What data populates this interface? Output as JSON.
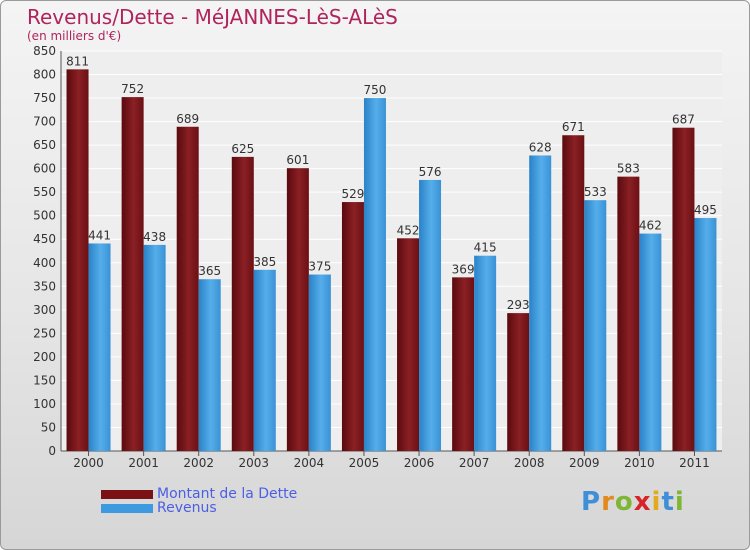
{
  "header": {
    "title": "Revenus/Dette - MéJANNES-LèS-ALèS",
    "subtitle": "(en milliers d'€)"
  },
  "legend": {
    "items": [
      {
        "label": "Montant de la Dette",
        "color": "#7a1216"
      },
      {
        "label": "Revenus",
        "color": "#3d9ae0"
      }
    ]
  },
  "logo": {
    "text": "Proxiti"
  },
  "colors": {
    "title": "#b0245d",
    "debt": "#7a1216",
    "revenue": "#3d9ae0",
    "legend_text": "#4a5fe6"
  },
  "chart_data": {
    "type": "bar",
    "title": "Revenus/Dette - MéJANNES-LèS-ALèS",
    "subtitle": "(en milliers d'€)",
    "categories": [
      "2000",
      "2001",
      "2002",
      "2003",
      "2004",
      "2005",
      "2006",
      "2007",
      "2008",
      "2009",
      "2010",
      "2011"
    ],
    "series": [
      {
        "name": "Montant de la Dette",
        "values": [
          811,
          752,
          689,
          625,
          601,
          529,
          452,
          369,
          293,
          671,
          583,
          687
        ]
      },
      {
        "name": "Revenus",
        "values": [
          441,
          438,
          365,
          385,
          375,
          750,
          576,
          415,
          628,
          533,
          462,
          495
        ]
      }
    ],
    "ylim": [
      0,
      850
    ],
    "yticks": [
      0,
      50,
      100,
      150,
      200,
      250,
      300,
      350,
      400,
      450,
      500,
      550,
      600,
      650,
      700,
      750,
      800,
      850
    ],
    "grid": true,
    "legend_position": "bottom-left"
  }
}
